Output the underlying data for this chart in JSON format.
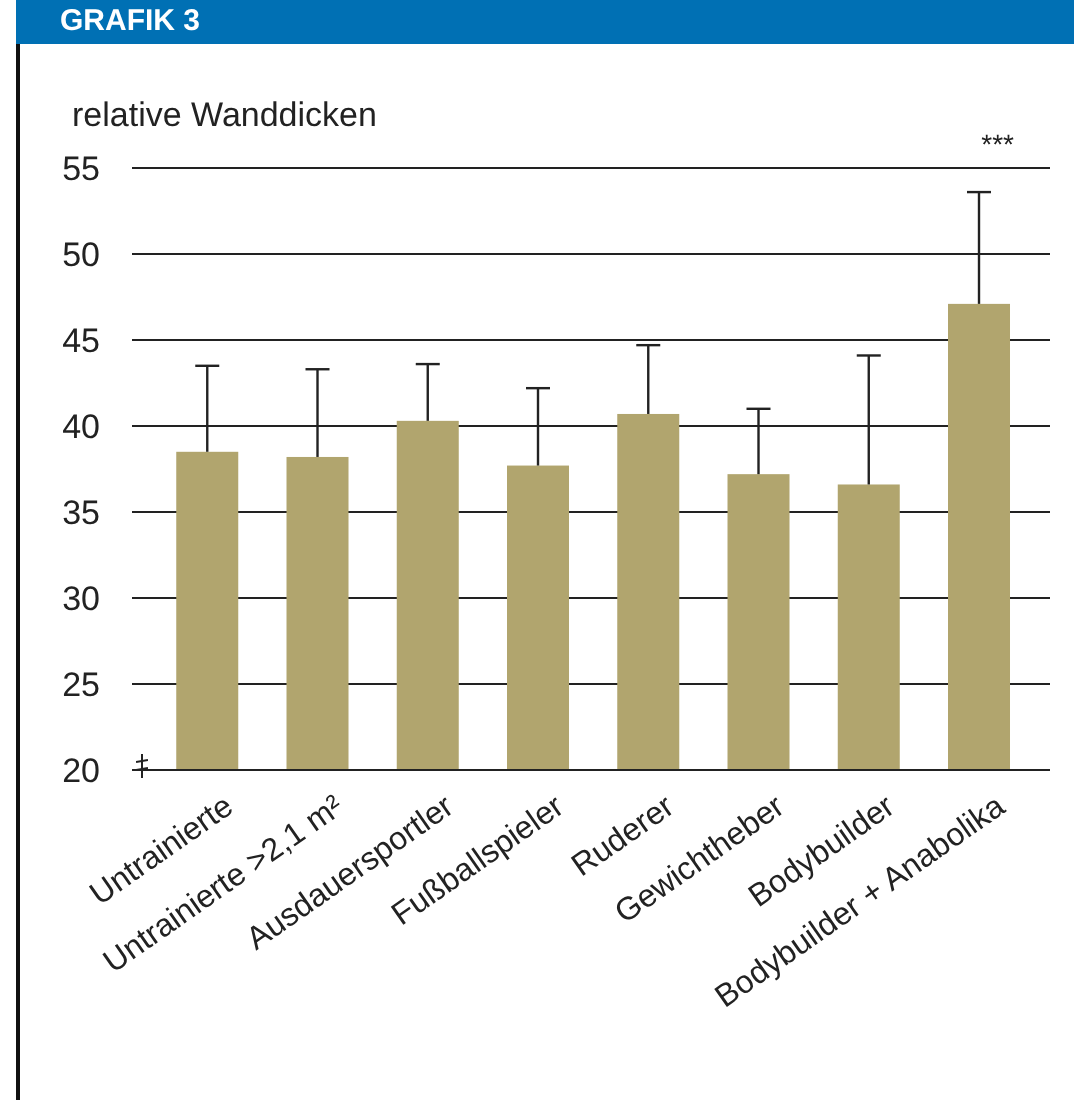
{
  "chart_data": {
    "type": "bar",
    "title": "GRAFIK 3",
    "ylabel": "relative Wanddicken",
    "categories": [
      "Untrainierte",
      "Untrainierte >2,1 m²",
      "Ausdauersportler",
      "Fußballspieler",
      "Ruderer",
      "Gewichtheber",
      "Bodybuilder",
      "Bodybuilder + Anabolika"
    ],
    "values": [
      38.5,
      38.2,
      40.3,
      37.7,
      40.7,
      37.2,
      36.6,
      47.1
    ],
    "errors": [
      [
        38.5,
        43.5
      ],
      [
        38.2,
        43.3
      ],
      [
        40.3,
        43.6
      ],
      [
        37.7,
        42.2
      ],
      [
        40.7,
        44.7
      ],
      [
        37.2,
        41.0
      ],
      [
        36.6,
        44.1
      ],
      [
        47.1,
        53.6
      ]
    ],
    "color": "#b1a56e",
    "ylim": [
      20,
      55
    ],
    "yticks": [
      20,
      25,
      30,
      35,
      40,
      45,
      50,
      55
    ],
    "grid": "y",
    "annotations": [
      "***"
    ]
  }
}
